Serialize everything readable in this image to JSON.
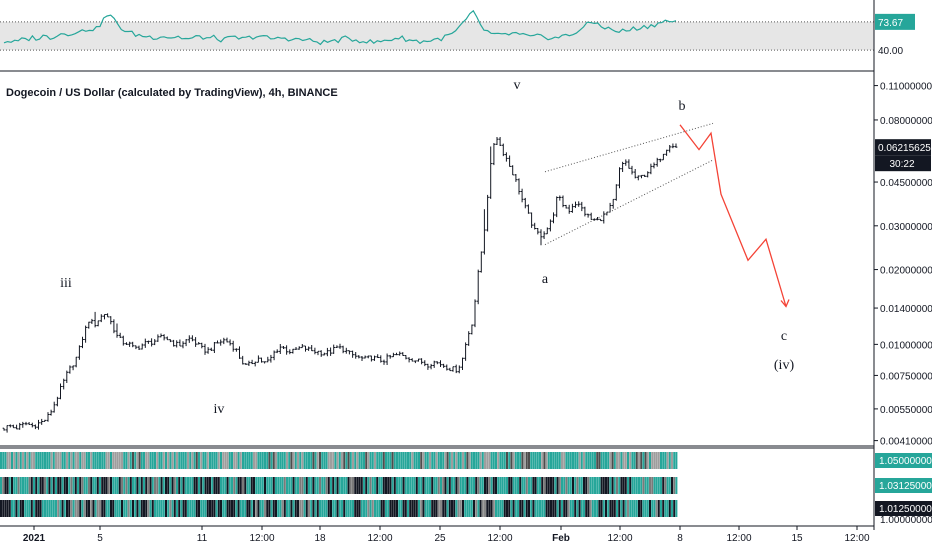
{
  "chart_title": "Dogecoin / US Dollar (calculated by TradingView), 4h, BINANCE",
  "colors": {
    "candles": "#131722",
    "rsi": "#26a69a",
    "rsi_band": "#e6e6e6",
    "projection": "#f44336",
    "teal": "#26a69a",
    "dark_badge": "#131722",
    "axis_border": "#131722",
    "grid_dots": "#555555"
  },
  "rsi_panel": {
    "axis_labels": [
      "73.67",
      "40.00"
    ],
    "current_value": "73.67",
    "series": [
      50,
      51,
      49,
      52,
      53,
      55,
      54,
      57,
      55,
      58,
      60,
      59,
      62,
      61,
      64,
      66,
      65,
      75,
      83,
      76,
      68,
      62,
      60,
      58,
      57,
      56,
      55,
      57,
      56,
      55,
      56,
      54,
      53,
      55,
      56,
      54,
      55,
      53,
      52,
      54,
      55,
      53,
      54,
      56,
      57,
      55,
      54,
      53,
      55,
      54,
      52,
      53,
      52,
      51,
      50,
      49,
      50,
      51,
      52,
      54,
      53,
      52,
      51,
      50,
      49,
      50,
      52,
      53,
      55,
      54,
      52,
      51,
      50,
      51,
      52,
      53,
      55,
      58,
      62,
      70,
      78,
      85,
      73,
      63,
      60,
      57,
      58,
      59,
      60,
      58,
      57,
      55,
      56,
      57,
      55,
      54,
      56,
      57,
      58,
      63,
      67,
      72,
      73,
      70,
      66,
      64,
      62,
      63,
      64,
      66,
      67,
      68,
      70,
      72,
      74,
      75,
      74
    ]
  },
  "chart_data": {
    "type": "candlestick",
    "title": "Dogecoin / US Dollar (calculated by TradingView), 4h, BINANCE",
    "timeframe": "4h",
    "exchange": "BINANCE",
    "y_scale": "log",
    "y_ticks": [
      "0.11000000",
      "0.08000000",
      "0.06215625",
      "0.04500000",
      "0.03000000",
      "0.02000000",
      "0.01400000",
      "0.01000000",
      "0.00750000",
      "0.00550000",
      "0.00410000"
    ],
    "x_ticks": [
      "2021",
      "5",
      "11",
      "12:00",
      "18",
      "12:00",
      "25",
      "12:00",
      "Feb",
      "12:00",
      "8",
      "12:00",
      "15",
      "12:00"
    ],
    "last_price": "0.06215625",
    "countdown": "30:22",
    "closes": [
      0.0046,
      0.0047,
      0.0046,
      0.0047,
      0.0048,
      0.0047,
      0.0048,
      0.0049,
      0.0052,
      0.0058,
      0.0066,
      0.0075,
      0.0082,
      0.009,
      0.0108,
      0.0125,
      0.012,
      0.0128,
      0.0134,
      0.0122,
      0.0108,
      0.0102,
      0.0101,
      0.0096,
      0.0098,
      0.0101,
      0.0102,
      0.0104,
      0.0107,
      0.0105,
      0.0101,
      0.0099,
      0.0103,
      0.0106,
      0.0101,
      0.0096,
      0.0094,
      0.0098,
      0.0102,
      0.0104,
      0.0101,
      0.0096,
      0.0086,
      0.0081,
      0.0085,
      0.0088,
      0.0084,
      0.0086,
      0.0094,
      0.0098,
      0.0095,
      0.0093,
      0.0096,
      0.0097,
      0.0095,
      0.0094,
      0.0093,
      0.0092,
      0.0094,
      0.0097,
      0.0096,
      0.0092,
      0.009,
      0.0088,
      0.0087,
      0.0089,
      0.0087,
      0.0086,
      0.0088,
      0.009,
      0.0091,
      0.0089,
      0.0088,
      0.0086,
      0.0085,
      0.0083,
      0.0085,
      0.0084,
      0.0082,
      0.008,
      0.0079,
      0.0084,
      0.0106,
      0.0125,
      0.0195,
      0.028,
      0.0485,
      0.0708,
      0.062,
      0.0558,
      0.0495,
      0.0432,
      0.0368,
      0.0325,
      0.0285,
      0.0275,
      0.0288,
      0.0315,
      0.0395,
      0.0365,
      0.0345,
      0.0372,
      0.0359,
      0.0335,
      0.0318,
      0.0314,
      0.0327,
      0.0342,
      0.0382,
      0.0505,
      0.0545,
      0.0498,
      0.0462,
      0.0475,
      0.0496,
      0.0522,
      0.0554,
      0.0605,
      0.0642,
      0.0621
    ],
    "wave_labels": [
      "iii",
      "iv",
      "v",
      "a",
      "b",
      "c",
      "(iv)"
    ],
    "projection": [
      0.0765,
      0.0608,
      0.0708,
      0.0402,
      0.0218,
      0.0265,
      0.0142
    ],
    "indicator_strips": {
      "labels": [
        "1.05000000",
        "1.03125000",
        "1.01250000",
        "1.00000000"
      ]
    }
  }
}
